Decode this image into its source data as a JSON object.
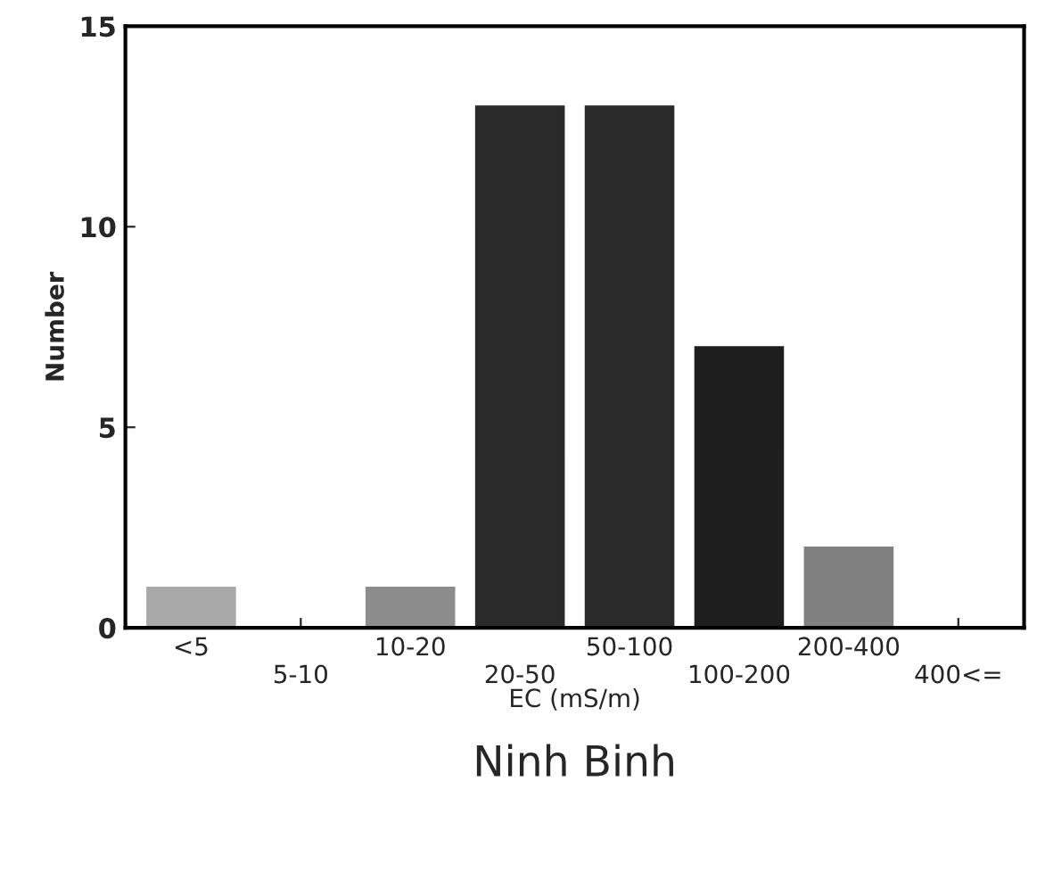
{
  "chart_data": {
    "type": "bar",
    "title": "Ninh Binh",
    "xlabel": "EC (mS/m)",
    "ylabel": "Number",
    "categories": [
      "<5",
      "5-10",
      "10-20",
      "20-50",
      "50-100",
      "100-200",
      "200-400",
      "400<="
    ],
    "values": [
      1,
      0,
      1,
      13,
      13,
      7,
      2,
      0
    ],
    "colors": [
      "#a8a8a8",
      "#a8a8a8",
      "#8c8c8c",
      "#2a2a2a",
      "#2a2a2a",
      "#1e1e1e",
      "#808080",
      "#808080"
    ],
    "ylim": [
      0,
      15
    ],
    "yticks": [
      0,
      5,
      10,
      15
    ],
    "grid": false,
    "legend": false
  }
}
